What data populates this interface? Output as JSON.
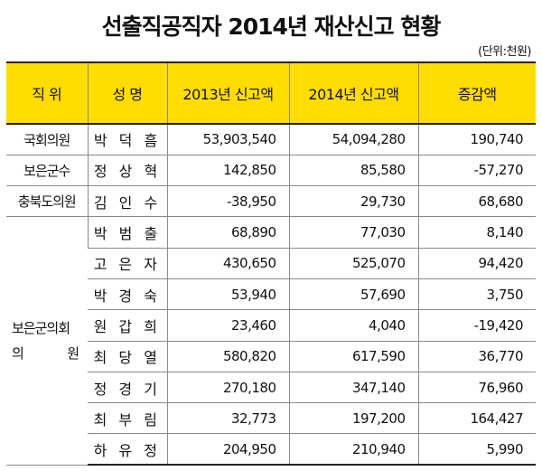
{
  "title": "선출직공직자 2014년 재산신고 현황",
  "unit": "(단위:천원)",
  "headers": [
    "직 위",
    "성 명",
    "2013년 신고액",
    "2014년 신고액",
    "증감액"
  ],
  "rows": [
    {
      "position": "국회의원",
      "name": "박 덕 흠",
      "y2013": "53,903,540",
      "y2014": "54,094,280",
      "change": "190,740"
    },
    {
      "position": "보은군수",
      "name": "정 상 혁",
      "y2013": "142,850",
      "y2014": "85,580",
      "change": "-57,270"
    },
    {
      "position": "충북도의원",
      "name": "김 인 수",
      "y2013": "-38,950",
      "y2014": "29,730",
      "change": "68,680"
    },
    {
      "position": "",
      "name": "박 범 출",
      "y2013": "68,890",
      "y2014": "77,030",
      "change": "8,140"
    },
    {
      "position": "",
      "name": "고 은 자",
      "y2013": "430,650",
      "y2014": "525,070",
      "change": "94,420"
    },
    {
      "position": "",
      "name": "박 경 숙",
      "y2013": "53,940",
      "y2014": "57,690",
      "change": "3,750"
    },
    {
      "position": "",
      "name": "원 갑 희",
      "y2013": "23,460",
      "y2014": "4,040",
      "change": "-19,420"
    },
    {
      "position": "",
      "name": "최 당 열",
      "y2013": "580,820",
      "y2014": "617,590",
      "change": "36,770"
    },
    {
      "position": "",
      "name": "정 경 기",
      "y2013": "270,180",
      "y2014": "347,140",
      "change": "76,960"
    },
    {
      "position": "",
      "name": "최 부 림",
      "y2013": "32,773",
      "y2014": "197,200",
      "change": "164,427"
    },
    {
      "position": "",
      "name": "하 유 정",
      "y2013": "204,950",
      "y2014": "210,940",
      "change": "5,990"
    }
  ],
  "group_label": {
    "line1": "보은군의회",
    "line2_left": "의",
    "line2_right": "원"
  },
  "colors": {
    "header_bg": "#ffdd00",
    "rule": "#222222",
    "grid": "#8a8a8a"
  }
}
